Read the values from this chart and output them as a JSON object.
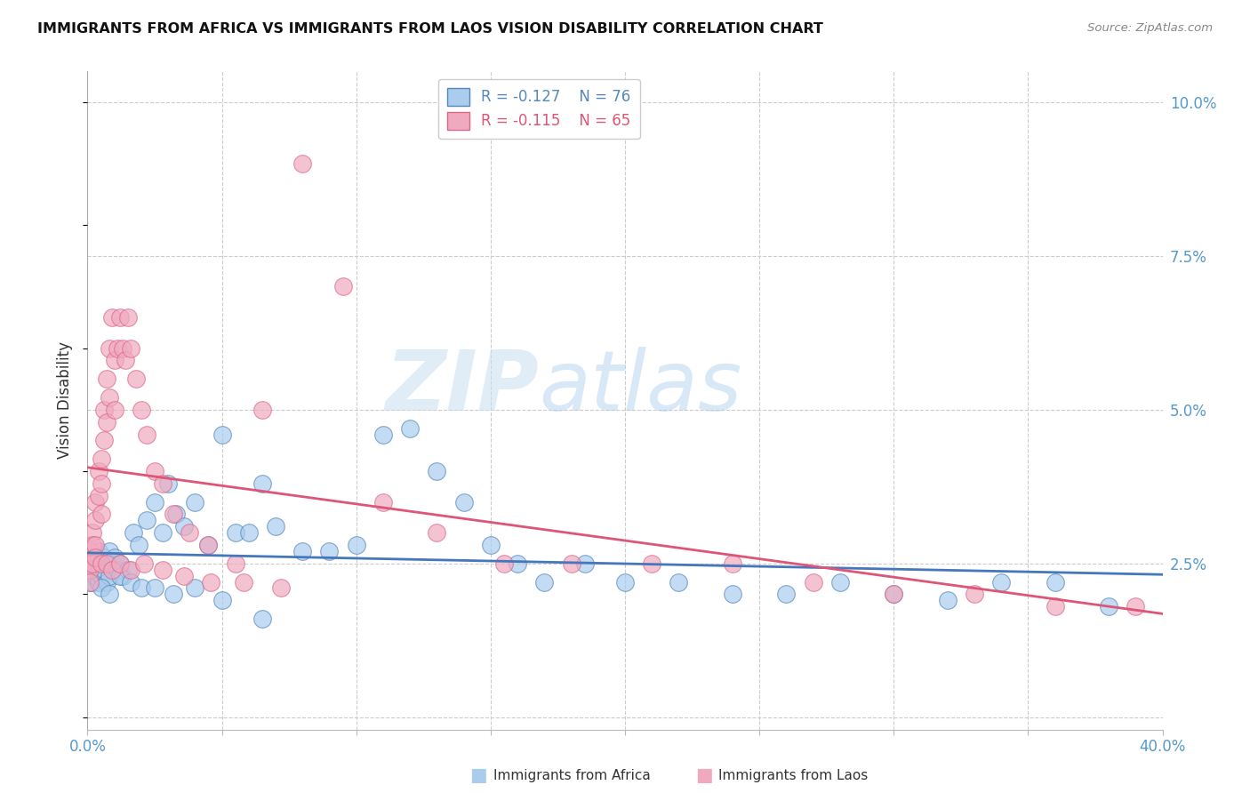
{
  "title": "IMMIGRANTS FROM AFRICA VS IMMIGRANTS FROM LAOS VISION DISABILITY CORRELATION CHART",
  "source": "Source: ZipAtlas.com",
  "ylabel": "Vision Disability",
  "xlim": [
    0.0,
    0.4
  ],
  "ylim": [
    -0.002,
    0.105
  ],
  "yticks": [
    0.0,
    0.025,
    0.05,
    0.075,
    0.1
  ],
  "ytick_labels": [
    "",
    "2.5%",
    "5.0%",
    "7.5%",
    "10.0%"
  ],
  "xticks": [
    0.0,
    0.05,
    0.1,
    0.15,
    0.2,
    0.25,
    0.3,
    0.35,
    0.4
  ],
  "xtick_labels": [
    "0.0%",
    "",
    "",
    "",
    "",
    "",
    "",
    "",
    "40.0%"
  ],
  "legend_r_africa": "R = -0.127",
  "legend_n_africa": "N = 76",
  "legend_r_laos": "R = -0.115",
  "legend_n_laos": "N = 65",
  "color_africa": "#aaccee",
  "color_laos": "#f0aac0",
  "color_africa_dark": "#5588bb",
  "color_laos_dark": "#dd6688",
  "color_africa_line": "#4477bb",
  "color_laos_line": "#dd5577",
  "watermark_zip": "ZIP",
  "watermark_atlas": "atlas",
  "africa_x": [
    0.001,
    0.001,
    0.001,
    0.001,
    0.001,
    0.002,
    0.002,
    0.002,
    0.002,
    0.003,
    0.003,
    0.003,
    0.004,
    0.004,
    0.004,
    0.005,
    0.005,
    0.005,
    0.006,
    0.006,
    0.007,
    0.007,
    0.008,
    0.008,
    0.009,
    0.01,
    0.011,
    0.012,
    0.013,
    0.015,
    0.017,
    0.019,
    0.022,
    0.025,
    0.028,
    0.03,
    0.033,
    0.036,
    0.04,
    0.045,
    0.05,
    0.055,
    0.06,
    0.065,
    0.07,
    0.08,
    0.09,
    0.1,
    0.11,
    0.12,
    0.13,
    0.14,
    0.15,
    0.16,
    0.17,
    0.185,
    0.2,
    0.22,
    0.24,
    0.26,
    0.28,
    0.3,
    0.32,
    0.34,
    0.36,
    0.38,
    0.005,
    0.008,
    0.012,
    0.016,
    0.02,
    0.025,
    0.032,
    0.04,
    0.05,
    0.065
  ],
  "africa_y": [
    0.026,
    0.025,
    0.024,
    0.023,
    0.022,
    0.025,
    0.024,
    0.023,
    0.022,
    0.026,
    0.025,
    0.023,
    0.027,
    0.025,
    0.022,
    0.025,
    0.024,
    0.023,
    0.026,
    0.024,
    0.025,
    0.022,
    0.027,
    0.023,
    0.025,
    0.026,
    0.024,
    0.025,
    0.023,
    0.024,
    0.03,
    0.028,
    0.032,
    0.035,
    0.03,
    0.038,
    0.033,
    0.031,
    0.035,
    0.028,
    0.046,
    0.03,
    0.03,
    0.038,
    0.031,
    0.027,
    0.027,
    0.028,
    0.046,
    0.047,
    0.04,
    0.035,
    0.028,
    0.025,
    0.022,
    0.025,
    0.022,
    0.022,
    0.02,
    0.02,
    0.022,
    0.02,
    0.019,
    0.022,
    0.022,
    0.018,
    0.021,
    0.02,
    0.023,
    0.022,
    0.021,
    0.021,
    0.02,
    0.021,
    0.019,
    0.016
  ],
  "laos_x": [
    0.001,
    0.001,
    0.001,
    0.001,
    0.002,
    0.002,
    0.002,
    0.003,
    0.003,
    0.003,
    0.004,
    0.004,
    0.005,
    0.005,
    0.005,
    0.006,
    0.006,
    0.007,
    0.007,
    0.008,
    0.008,
    0.009,
    0.01,
    0.01,
    0.011,
    0.012,
    0.013,
    0.014,
    0.015,
    0.016,
    0.018,
    0.02,
    0.022,
    0.025,
    0.028,
    0.032,
    0.038,
    0.045,
    0.055,
    0.065,
    0.08,
    0.095,
    0.11,
    0.13,
    0.155,
    0.18,
    0.21,
    0.24,
    0.27,
    0.3,
    0.33,
    0.36,
    0.39,
    0.003,
    0.005,
    0.007,
    0.009,
    0.012,
    0.016,
    0.021,
    0.028,
    0.036,
    0.046,
    0.058,
    0.072
  ],
  "laos_y": [
    0.027,
    0.025,
    0.024,
    0.022,
    0.03,
    0.028,
    0.025,
    0.035,
    0.032,
    0.028,
    0.04,
    0.036,
    0.042,
    0.038,
    0.033,
    0.05,
    0.045,
    0.055,
    0.048,
    0.06,
    0.052,
    0.065,
    0.058,
    0.05,
    0.06,
    0.065,
    0.06,
    0.058,
    0.065,
    0.06,
    0.055,
    0.05,
    0.046,
    0.04,
    0.038,
    0.033,
    0.03,
    0.028,
    0.025,
    0.05,
    0.09,
    0.07,
    0.035,
    0.03,
    0.025,
    0.025,
    0.025,
    0.025,
    0.022,
    0.02,
    0.02,
    0.018,
    0.018,
    0.026,
    0.025,
    0.025,
    0.024,
    0.025,
    0.024,
    0.025,
    0.024,
    0.023,
    0.022,
    0.022,
    0.021
  ]
}
